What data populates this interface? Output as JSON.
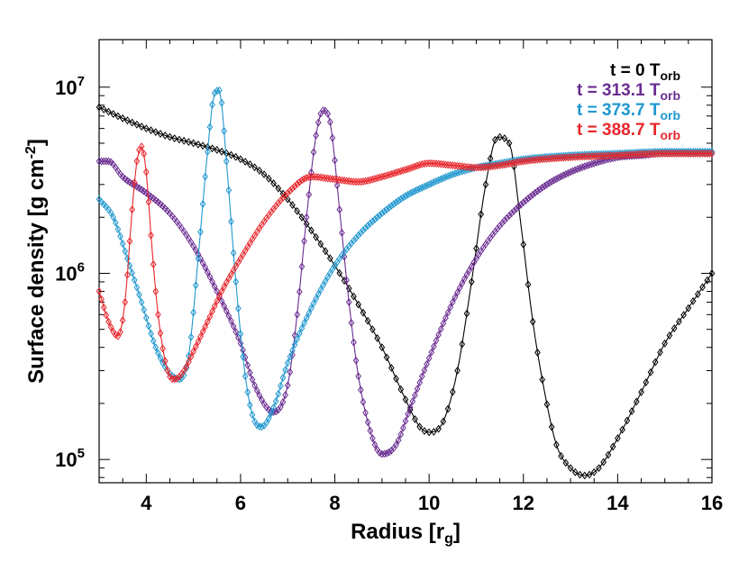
{
  "chart_data": {
    "type": "line",
    "xlabel": "Radius [r_g]",
    "xlabel_main": "Radius [r",
    "xlabel_sub": "g",
    "xlabel_close": "]",
    "ylabel_main": "Surface density [g cm",
    "ylabel_sup": "-2",
    "ylabel_close": "]",
    "ylabel": "Surface density [g cm^-2]",
    "xlim": [
      3,
      16
    ],
    "ylim": [
      75000,
      18000000
    ],
    "yscale": "log",
    "x_ticks": [
      4,
      6,
      8,
      10,
      12,
      14,
      16
    ],
    "x_tick_labels": [
      "4",
      "6",
      "8",
      "10",
      "12",
      "14",
      "16"
    ],
    "y_ticks": [
      {
        "value": 100000,
        "base": "10",
        "exp": "5"
      },
      {
        "value": 1000000,
        "base": "10",
        "exp": "6"
      },
      {
        "value": 10000000,
        "base": "10",
        "exp": "7"
      }
    ],
    "legend_position": "top-right",
    "marker": "diamond",
    "series": [
      {
        "name": "t = 0 T_orb",
        "label_main": "t = 0 T",
        "label_sub": "orb",
        "color": "#000000",
        "x": [
          3.0,
          3.5,
          4.0,
          4.5,
          5.0,
          5.5,
          6.0,
          6.5,
          7.0,
          7.5,
          8.0,
          8.5,
          9.0,
          9.5,
          9.8,
          10.0,
          10.3,
          10.6,
          10.9,
          11.2,
          11.45,
          11.7,
          11.95,
          12.2,
          12.45,
          12.7,
          13.0,
          13.3,
          13.6,
          14.0,
          14.5,
          15.0,
          15.5,
          16.0
        ],
        "y": [
          7800000,
          6800000,
          6000000,
          5400000,
          5000000,
          4600000,
          4100000,
          3400000,
          2500000,
          1700000,
          1100000,
          680000,
          400000,
          210000,
          150000,
          140000,
          160000,
          300000,
          900000,
          3000000,
          5400000,
          5000000,
          1800000,
          550000,
          230000,
          120000,
          90000,
          82000,
          90000,
          130000,
          230000,
          420000,
          650000,
          1000000
        ]
      },
      {
        "name": "t = 313.1 T_orb",
        "label_main": "t = 313.1 T",
        "label_sub": "orb",
        "color": "#6a2c91",
        "x": [
          3.0,
          3.2,
          3.5,
          4.0,
          4.5,
          5.0,
          5.5,
          6.0,
          6.3,
          6.7,
          7.0,
          7.2,
          7.4,
          7.6,
          7.75,
          7.9,
          8.1,
          8.3,
          8.5,
          8.8,
          9.0,
          9.3,
          9.6,
          10.0,
          10.5,
          11.0,
          11.5,
          12.0,
          12.5,
          13.0,
          13.5,
          14.0,
          14.5,
          15.0,
          16.0
        ],
        "y": [
          4000000,
          4000000,
          3300000,
          2700000,
          2100000,
          1400000,
          800000,
          420000,
          250000,
          180000,
          250000,
          600000,
          2000000,
          5500000,
          7500000,
          6500000,
          2200000,
          700000,
          280000,
          130000,
          107000,
          120000,
          190000,
          350000,
          700000,
          1200000,
          1800000,
          2400000,
          3000000,
          3500000,
          3900000,
          4200000,
          4300000,
          4400000,
          4400000
        ]
      },
      {
        "name": "t = 373.7 T_orb",
        "label_main": "t = 373.7 T",
        "label_sub": "orb",
        "color": "#1f97cf",
        "x": [
          3.0,
          3.3,
          3.6,
          3.9,
          4.2,
          4.5,
          4.7,
          4.9,
          5.1,
          5.3,
          5.45,
          5.55,
          5.7,
          5.9,
          6.1,
          6.3,
          6.45,
          6.7,
          7.0,
          7.5,
          8.0,
          8.5,
          9.0,
          9.5,
          10.0,
          10.5,
          11.0,
          11.5,
          12.0,
          13.0,
          14.0,
          15.0,
          16.0
        ],
        "y": [
          2500000,
          2000000,
          1200000,
          700000,
          400000,
          290000,
          270000,
          360000,
          1200000,
          4500000,
          9300000,
          9600000,
          4000000,
          900000,
          280000,
          160000,
          150000,
          190000,
          330000,
          650000,
          1100000,
          1600000,
          2100000,
          2600000,
          3000000,
          3400000,
          3700000,
          3900000,
          4100000,
          4300000,
          4400000,
          4500000,
          4500000
        ]
      },
      {
        "name": "t = 388.7 T_orb",
        "label_main": "t = 388.7 T",
        "label_sub": "orb",
        "color": "#e8262b",
        "x": [
          3.0,
          3.2,
          3.4,
          3.55,
          3.7,
          3.8,
          3.9,
          4.0,
          4.1,
          4.25,
          4.45,
          4.6,
          4.8,
          5.0,
          5.3,
          5.6,
          6.0,
          6.5,
          7.0,
          7.5,
          8.0,
          8.5,
          9.0,
          9.5,
          10.0,
          10.5,
          11.0,
          11.5,
          12.0,
          13.0,
          14.0,
          15.0,
          16.0
        ],
        "y": [
          800000,
          550000,
          460000,
          700000,
          2200000,
          4000000,
          4800000,
          3500000,
          1600000,
          600000,
          300000,
          270000,
          300000,
          380000,
          550000,
          800000,
          1200000,
          1900000,
          2700000,
          3300000,
          3200000,
          3100000,
          3300000,
          3600000,
          3900000,
          3800000,
          3700000,
          3800000,
          4000000,
          4200000,
          4300000,
          4400000,
          4400000
        ]
      }
    ]
  }
}
